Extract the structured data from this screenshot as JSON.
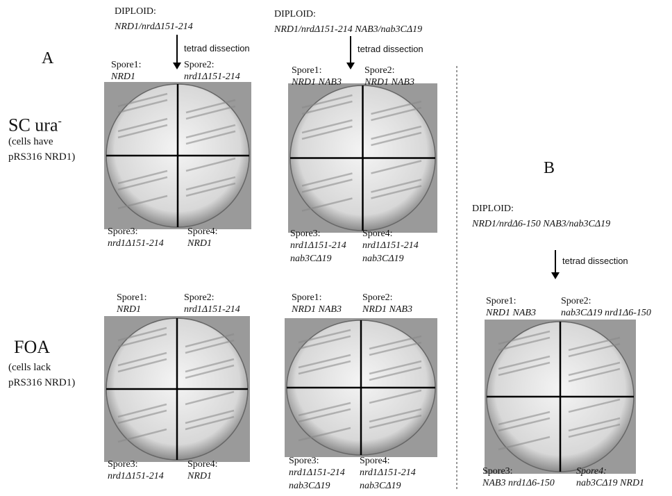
{
  "panels": [
    "A",
    "B"
  ],
  "headers": [
    {
      "title": "DIPLOID:",
      "genotype": "NRD1/nrdΔ151-214",
      "arrow": "tetrad dissection"
    },
    {
      "title": "DIPLOID:",
      "genotype": "NRD1/nrdΔ151-214 NAB3/nab3CΔ19",
      "arrow": "tetrad dissection"
    },
    {
      "title": "DIPLOID:",
      "genotype": "NRD1/nrdΔ6-150 NAB3/nab3CΔ19",
      "arrow": "tetrad dissection"
    }
  ],
  "row_labels": [
    {
      "title": "SC ura",
      "superscript": "-",
      "lines": [
        "(cells have",
        "pRS316 NRD1)"
      ]
    },
    {
      "title": "FOA",
      "lines": [
        "(cells lack",
        "pRS316 NRD1)"
      ]
    }
  ],
  "plates": [
    {
      "spores": [
        {
          "name": "Spore1:",
          "genotype": [
            "NRD1"
          ]
        },
        {
          "name": "Spore2:",
          "genotype": [
            "nrd1Δ151-214"
          ]
        },
        {
          "name": "Spore3:",
          "genotype": [
            "nrd1Δ151-214"
          ]
        },
        {
          "name": "Spore4:",
          "genotype": [
            "NRD1"
          ]
        }
      ]
    },
    {
      "spores": [
        {
          "name": "Spore1:",
          "genotype": [
            "NRD1 NAB3"
          ]
        },
        {
          "name": "Spore2:",
          "genotype": [
            "NRD1 NAB3"
          ]
        },
        {
          "name": "Spore3:",
          "genotype": [
            "nrd1Δ151-214",
            "nab3CΔ19"
          ]
        },
        {
          "name": "Spore4:",
          "genotype": [
            "nrd1Δ151-214",
            "nab3CΔ19"
          ]
        }
      ]
    },
    {
      "spores": [
        {
          "name": "Spore1:",
          "genotype": [
            "NRD1"
          ]
        },
        {
          "name": "Spore2:",
          "genotype": [
            "nrd1Δ151-214"
          ]
        },
        {
          "name": "Spore3:",
          "genotype": [
            "nrd1Δ151-214"
          ]
        },
        {
          "name": "Spore4:",
          "genotype": [
            "NRD1"
          ]
        }
      ]
    },
    {
      "spores": [
        {
          "name": "Spore1:",
          "genotype": [
            "NRD1 NAB3"
          ]
        },
        {
          "name": "Spore2:",
          "genotype": [
            "NRD1 NAB3"
          ]
        },
        {
          "name": "Spore3:",
          "genotype": [
            "nrd1Δ151-214",
            "nab3CΔ19"
          ]
        },
        {
          "name": "Spore4:",
          "genotype": [
            "nrd1Δ151-214",
            "nab3CΔ19"
          ]
        }
      ]
    },
    {
      "spores": [
        {
          "name": "Spore1:",
          "genotype": [
            "NRD1 NAB3"
          ]
        },
        {
          "name": "Spore2:",
          "genotype": [
            "nab3CΔ19 nrd1Δ6-150"
          ]
        },
        {
          "name": "Spore3:",
          "genotype": [
            "NAB3 nrd1Δ6-150"
          ]
        },
        {
          "name": "Spore4:",
          "genotype": [
            "nab3CΔ19 NRD1"
          ]
        }
      ]
    }
  ]
}
